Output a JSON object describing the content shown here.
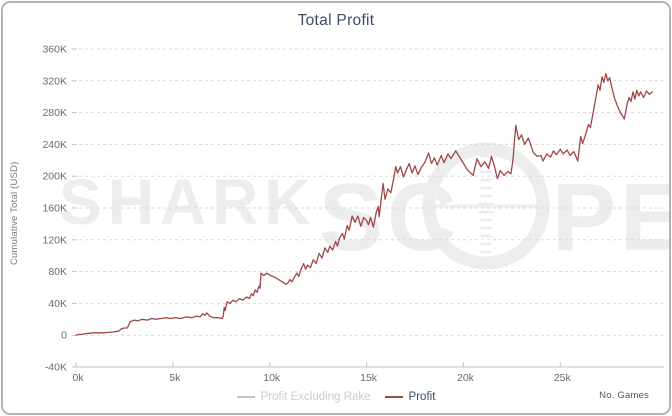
{
  "header": {
    "title": "Total Profit"
  },
  "axes": {
    "y_title": "Cumulative Total (USD)",
    "x_title": "No. Games"
  },
  "legend": [
    {
      "label": "Profit Excluding Rake",
      "swatch_color": "#c6c6c6",
      "text_color": "#cccccc",
      "active": false
    },
    {
      "label": "Profit",
      "swatch_color": "#a04747",
      "text_color": "#3d4e66",
      "active": true
    }
  ],
  "watermark": {
    "text_left": "SHARK",
    "text_mid": "SC",
    "text_right": "PE",
    "color": "#ededed"
  },
  "colors": {
    "line": "#a04747",
    "grid": "#d9d9d9",
    "axis": "#c2c2c2",
    "tick_label": "#6b6b6b",
    "title": "#3c4d66"
  },
  "chart_data": {
    "type": "line",
    "title": "Total Profit",
    "xlabel": "No. Games",
    "ylabel": "Cumulative Total (USD)",
    "units": {
      "x": "thousand games",
      "y": "thousand USD"
    },
    "xlim_games": [
      0,
      30300
    ],
    "ylim_usd": [
      -40000,
      360000
    ],
    "x_tick_labels": [
      "0k",
      "5k",
      "10k",
      "15k",
      "20k",
      "25k"
    ],
    "x_tick_values": [
      0,
      5000,
      10000,
      15000,
      20000,
      25000
    ],
    "y_tick_labels": [
      "-40K",
      "0",
      "40K",
      "80K",
      "120K",
      "160K",
      "200K",
      "240K",
      "280K",
      "320K",
      "360K"
    ],
    "y_tick_values": [
      -40000,
      0,
      40000,
      80000,
      120000,
      160000,
      200000,
      240000,
      280000,
      320000,
      360000
    ],
    "grid": "horizontal-dashed",
    "legend_position": "bottom-center",
    "series": [
      {
        "name": "Profit Excluding Rake",
        "color": "#c6c6c6",
        "visible": false,
        "points": []
      },
      {
        "name": "Profit",
        "color": "#a04747",
        "visible": true,
        "points": [
          [
            0,
            0
          ],
          [
            0.15,
            1
          ],
          [
            0.3,
            1
          ],
          [
            0.5,
            2
          ],
          [
            0.9,
            3
          ],
          [
            1.4,
            3
          ],
          [
            1.9,
            4
          ],
          [
            2.2,
            5
          ],
          [
            2.35,
            8
          ],
          [
            2.5,
            9
          ],
          [
            2.65,
            9
          ],
          [
            2.8,
            17
          ],
          [
            3.0,
            19
          ],
          [
            3.2,
            18
          ],
          [
            3.4,
            20
          ],
          [
            3.7,
            19
          ],
          [
            3.9,
            21
          ],
          [
            4.1,
            20
          ],
          [
            4.4,
            21
          ],
          [
            4.6,
            22
          ],
          [
            4.9,
            21
          ],
          [
            5.1,
            22
          ],
          [
            5.4,
            21
          ],
          [
            5.7,
            23
          ],
          [
            6.0,
            22
          ],
          [
            6.2,
            24
          ],
          [
            6.4,
            23
          ],
          [
            6.55,
            27
          ],
          [
            6.65,
            25
          ],
          [
            6.75,
            28
          ],
          [
            6.9,
            24
          ],
          [
            7.1,
            22
          ],
          [
            7.35,
            22
          ],
          [
            7.55,
            21
          ],
          [
            7.6,
            24
          ],
          [
            7.65,
            35
          ],
          [
            7.7,
            31
          ],
          [
            7.8,
            42
          ],
          [
            7.95,
            40
          ],
          [
            8.1,
            44
          ],
          [
            8.25,
            42
          ],
          [
            8.45,
            46
          ],
          [
            8.6,
            44
          ],
          [
            8.8,
            48
          ],
          [
            8.95,
            46
          ],
          [
            9.05,
            52
          ],
          [
            9.15,
            50
          ],
          [
            9.25,
            57
          ],
          [
            9.35,
            54
          ],
          [
            9.45,
            62
          ],
          [
            9.5,
            59
          ],
          [
            9.55,
            78
          ],
          [
            9.7,
            75
          ],
          [
            9.85,
            78
          ],
          [
            10.05,
            75
          ],
          [
            10.25,
            73
          ],
          [
            10.45,
            70
          ],
          [
            10.65,
            67
          ],
          [
            10.85,
            64
          ],
          [
            10.95,
            66
          ],
          [
            11.05,
            70
          ],
          [
            11.15,
            67
          ],
          [
            11.25,
            72
          ],
          [
            11.4,
            78
          ],
          [
            11.5,
            74
          ],
          [
            11.6,
            82
          ],
          [
            11.75,
            90
          ],
          [
            11.85,
            83
          ],
          [
            11.95,
            88
          ],
          [
            12.1,
            85
          ],
          [
            12.25,
            95
          ],
          [
            12.4,
            90
          ],
          [
            12.55,
            103
          ],
          [
            12.7,
            97
          ],
          [
            12.85,
            110
          ],
          [
            13.0,
            104
          ],
          [
            13.1,
            112
          ],
          [
            13.25,
            107
          ],
          [
            13.4,
            118
          ],
          [
            13.5,
            112
          ],
          [
            13.6,
            122
          ],
          [
            13.75,
            128
          ],
          [
            13.85,
            121
          ],
          [
            14.0,
            138
          ],
          [
            14.1,
            132
          ],
          [
            14.25,
            150
          ],
          [
            14.4,
            142
          ],
          [
            14.55,
            150
          ],
          [
            14.7,
            137
          ],
          [
            14.85,
            148
          ],
          [
            15.0,
            144
          ],
          [
            15.1,
            139
          ],
          [
            15.2,
            148
          ],
          [
            15.35,
            136
          ],
          [
            15.5,
            155
          ],
          [
            15.6,
            162
          ],
          [
            15.65,
            149
          ],
          [
            15.75,
            170
          ],
          [
            15.85,
            191
          ],
          [
            15.95,
            171
          ],
          [
            16.1,
            184
          ],
          [
            16.25,
            179
          ],
          [
            16.4,
            197
          ],
          [
            16.5,
            212
          ],
          [
            16.6,
            204
          ],
          [
            16.75,
            212
          ],
          [
            16.9,
            199
          ],
          [
            17.05,
            208
          ],
          [
            17.2,
            216
          ],
          [
            17.35,
            204
          ],
          [
            17.5,
            213
          ],
          [
            17.65,
            202
          ],
          [
            17.85,
            212
          ],
          [
            18.0,
            217
          ],
          [
            18.2,
            229
          ],
          [
            18.35,
            216
          ],
          [
            18.5,
            223
          ],
          [
            18.65,
            214
          ],
          [
            18.85,
            226
          ],
          [
            19.0,
            217
          ],
          [
            19.2,
            228
          ],
          [
            19.35,
            222
          ],
          [
            19.6,
            232
          ],
          [
            19.8,
            224
          ],
          [
            20.0,
            216
          ],
          [
            20.2,
            208
          ],
          [
            20.5,
            201
          ],
          [
            20.7,
            222
          ],
          [
            20.9,
            212
          ],
          [
            21.1,
            218
          ],
          [
            21.3,
            210
          ],
          [
            21.45,
            225
          ],
          [
            21.6,
            212
          ],
          [
            21.75,
            197
          ],
          [
            21.9,
            207
          ],
          [
            22.1,
            201
          ],
          [
            22.3,
            206
          ],
          [
            22.45,
            203
          ],
          [
            22.55,
            220
          ],
          [
            22.7,
            264
          ],
          [
            22.85,
            246
          ],
          [
            23.0,
            252
          ],
          [
            23.15,
            240
          ],
          [
            23.35,
            248
          ],
          [
            23.6,
            230
          ],
          [
            23.8,
            225
          ],
          [
            24.0,
            226
          ],
          [
            24.1,
            219
          ],
          [
            24.3,
            228
          ],
          [
            24.5,
            224
          ],
          [
            24.65,
            232
          ],
          [
            24.8,
            227
          ],
          [
            25.0,
            234
          ],
          [
            25.15,
            228
          ],
          [
            25.35,
            233
          ],
          [
            25.5,
            226
          ],
          [
            25.7,
            231
          ],
          [
            25.9,
            219
          ],
          [
            26.05,
            250
          ],
          [
            26.15,
            241
          ],
          [
            26.3,
            252
          ],
          [
            26.45,
            265
          ],
          [
            26.55,
            261
          ],
          [
            26.7,
            281
          ],
          [
            26.85,
            301
          ],
          [
            26.95,
            315
          ],
          [
            27.05,
            308
          ],
          [
            27.15,
            325
          ],
          [
            27.25,
            318
          ],
          [
            27.35,
            329
          ],
          [
            27.45,
            320
          ],
          [
            27.55,
            324
          ],
          [
            27.65,
            312
          ],
          [
            27.8,
            298
          ],
          [
            27.95,
            288
          ],
          [
            28.1,
            280
          ],
          [
            28.3,
            272
          ],
          [
            28.45,
            291
          ],
          [
            28.55,
            299
          ],
          [
            28.65,
            294
          ],
          [
            28.75,
            306
          ],
          [
            28.85,
            297
          ],
          [
            28.95,
            308
          ],
          [
            29.05,
            301
          ],
          [
            29.15,
            306
          ],
          [
            29.3,
            299
          ],
          [
            29.45,
            307
          ],
          [
            29.6,
            303
          ],
          [
            29.75,
            306
          ]
        ]
      }
    ]
  }
}
